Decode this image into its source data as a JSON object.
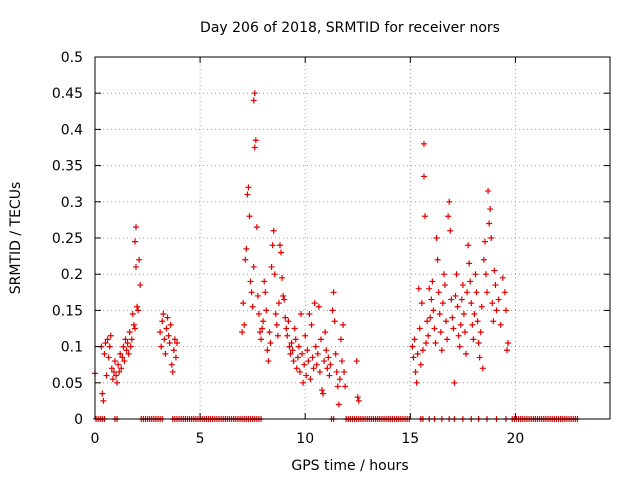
{
  "chart_data": {
    "type": "scatter",
    "title": "Day 206 of 2018, SRMTID for receiver nors",
    "xlabel": "GPS time / hours",
    "ylabel": "SRMTID / TECUs",
    "xlim": [
      0,
      24.5
    ],
    "ylim": [
      0,
      0.5
    ],
    "x_ticks": [
      0,
      5,
      10,
      15,
      20
    ],
    "y_ticks": [
      0,
      0.05,
      0.1,
      0.15,
      0.2,
      0.25,
      0.3,
      0.35,
      0.4,
      0.45,
      0.5
    ],
    "x_tick_labels": [
      "0",
      "5",
      "10",
      "15",
      "20"
    ],
    "y_tick_labels": [
      "0",
      "0.05",
      "0.1",
      "0.15",
      "0.2",
      "0.25",
      "0.3",
      "0.35",
      "0.4",
      "0.45",
      "0.5"
    ],
    "grid": true,
    "marker": "+",
    "marker_color": "#e00000",
    "series": [
      {
        "name": "SRMTID",
        "points": [
          [
            0.0,
            0.063
          ],
          [
            0.3,
            0.1
          ],
          [
            0.35,
            0.035
          ],
          [
            0.4,
            0.025
          ],
          [
            0.45,
            0.09
          ],
          [
            0.5,
            0.105
          ],
          [
            0.55,
            0.06
          ],
          [
            0.6,
            0.11
          ],
          [
            0.65,
            0.085
          ],
          [
            0.7,
            0.1
          ],
          [
            0.75,
            0.115
          ],
          [
            0.8,
            0.07
          ],
          [
            0.85,
            0.055
          ],
          [
            0.9,
            0.065
          ],
          [
            0.95,
            0.08
          ],
          [
            1.0,
            0.06
          ],
          [
            1.05,
            0.05
          ],
          [
            1.1,
            0.075
          ],
          [
            1.15,
            0.065
          ],
          [
            1.2,
            0.09
          ],
          [
            1.25,
            0.07
          ],
          [
            1.3,
            0.085
          ],
          [
            1.35,
            0.1
          ],
          [
            1.4,
            0.08
          ],
          [
            1.45,
            0.11
          ],
          [
            1.5,
            0.095
          ],
          [
            1.55,
            0.105
          ],
          [
            1.6,
            0.09
          ],
          [
            1.65,
            0.12
          ],
          [
            1.7,
            0.1
          ],
          [
            1.75,
            0.11
          ],
          [
            1.8,
            0.145
          ],
          [
            1.85,
            0.13
          ],
          [
            1.9,
            0.125
          ],
          [
            1.95,
            0.21
          ],
          [
            1.9,
            0.245
          ],
          [
            1.95,
            0.265
          ],
          [
            2.0,
            0.155
          ],
          [
            2.05,
            0.15
          ],
          [
            2.1,
            0.22
          ],
          [
            2.15,
            0.185
          ],
          [
            3.1,
            0.12
          ],
          [
            3.15,
            0.1
          ],
          [
            3.2,
            0.135
          ],
          [
            3.25,
            0.145
          ],
          [
            3.3,
            0.11
          ],
          [
            3.35,
            0.09
          ],
          [
            3.4,
            0.125
          ],
          [
            3.45,
            0.14
          ],
          [
            3.5,
            0.115
          ],
          [
            3.55,
            0.105
          ],
          [
            3.6,
            0.13
          ],
          [
            3.65,
            0.075
          ],
          [
            3.7,
            0.065
          ],
          [
            3.75,
            0.095
          ],
          [
            3.8,
            0.11
          ],
          [
            3.85,
            0.085
          ],
          [
            3.9,
            0.105
          ],
          [
            7.0,
            0.12
          ],
          [
            7.05,
            0.16
          ],
          [
            7.1,
            0.13
          ],
          [
            7.15,
            0.22
          ],
          [
            7.2,
            0.235
          ],
          [
            7.25,
            0.31
          ],
          [
            7.3,
            0.32
          ],
          [
            7.35,
            0.28
          ],
          [
            7.4,
            0.19
          ],
          [
            7.45,
            0.175
          ],
          [
            7.5,
            0.155
          ],
          [
            7.55,
            0.21
          ],
          [
            7.6,
            0.375
          ],
          [
            7.65,
            0.385
          ],
          [
            7.55,
            0.44
          ],
          [
            7.6,
            0.45
          ],
          [
            7.7,
            0.265
          ],
          [
            7.75,
            0.17
          ],
          [
            7.8,
            0.145
          ],
          [
            7.85,
            0.12
          ],
          [
            7.9,
            0.11
          ],
          [
            7.95,
            0.125
          ],
          [
            8.0,
            0.135
          ],
          [
            8.05,
            0.19
          ],
          [
            8.1,
            0.175
          ],
          [
            8.15,
            0.15
          ],
          [
            8.2,
            0.095
          ],
          [
            8.25,
            0.08
          ],
          [
            8.3,
            0.12
          ],
          [
            8.35,
            0.105
          ],
          [
            8.4,
            0.21
          ],
          [
            8.45,
            0.24
          ],
          [
            8.5,
            0.26
          ],
          [
            8.55,
            0.2
          ],
          [
            8.6,
            0.145
          ],
          [
            8.65,
            0.13
          ],
          [
            8.7,
            0.115
          ],
          [
            8.75,
            0.16
          ],
          [
            8.8,
            0.24
          ],
          [
            8.85,
            0.23
          ],
          [
            8.9,
            0.195
          ],
          [
            8.95,
            0.17
          ],
          [
            9.0,
            0.165
          ],
          [
            9.05,
            0.14
          ],
          [
            9.1,
            0.125
          ],
          [
            9.15,
            0.115
          ],
          [
            9.2,
            0.135
          ],
          [
            9.25,
            0.1
          ],
          [
            9.3,
            0.09
          ],
          [
            9.35,
            0.105
          ],
          [
            9.4,
            0.095
          ],
          [
            9.45,
            0.08
          ],
          [
            9.5,
            0.125
          ],
          [
            9.55,
            0.11
          ],
          [
            9.6,
            0.07
          ],
          [
            9.65,
            0.085
          ],
          [
            9.7,
            0.1
          ],
          [
            9.75,
            0.065
          ],
          [
            9.8,
            0.145
          ],
          [
            9.85,
            0.09
          ],
          [
            9.9,
            0.05
          ],
          [
            9.95,
            0.075
          ],
          [
            10.0,
            0.115
          ],
          [
            10.05,
            0.06
          ],
          [
            10.1,
            0.095
          ],
          [
            10.15,
            0.08
          ],
          [
            10.2,
            0.145
          ],
          [
            10.25,
            0.055
          ],
          [
            10.3,
            0.13
          ],
          [
            10.35,
            0.085
          ],
          [
            10.4,
            0.07
          ],
          [
            10.45,
            0.16
          ],
          [
            10.5,
            0.1
          ],
          [
            10.55,
            0.075
          ],
          [
            10.6,
            0.09
          ],
          [
            10.65,
            0.155
          ],
          [
            10.7,
            0.065
          ],
          [
            10.75,
            0.11
          ],
          [
            10.8,
            0.04
          ],
          [
            10.85,
            0.035
          ],
          [
            10.9,
            0.08
          ],
          [
            10.95,
            0.12
          ],
          [
            11.0,
            0.095
          ],
          [
            11.05,
            0.07
          ],
          [
            11.1,
            0.085
          ],
          [
            11.15,
            0.06
          ],
          [
            11.2,
            0.075
          ],
          [
            11.3,
            0.15
          ],
          [
            11.35,
            0.175
          ],
          [
            11.4,
            0.135
          ],
          [
            11.45,
            0.09
          ],
          [
            11.5,
            0.065
          ],
          [
            11.55,
            0.045
          ],
          [
            11.6,
            0.02
          ],
          [
            11.65,
            0.055
          ],
          [
            11.7,
            0.11
          ],
          [
            11.75,
            0.08
          ],
          [
            11.8,
            0.13
          ],
          [
            11.85,
            0.065
          ],
          [
            11.9,
            0.045
          ],
          [
            12.45,
            0.08
          ],
          [
            12.5,
            0.03
          ],
          [
            12.55,
            0.025
          ],
          [
            15.1,
            0.1
          ],
          [
            15.15,
            0.085
          ],
          [
            15.2,
            0.11
          ],
          [
            15.25,
            0.065
          ],
          [
            15.3,
            0.05
          ],
          [
            15.35,
            0.09
          ],
          [
            15.4,
            0.18
          ],
          [
            15.45,
            0.125
          ],
          [
            15.5,
            0.075
          ],
          [
            15.55,
            0.16
          ],
          [
            15.6,
            0.095
          ],
          [
            15.65,
            0.38
          ],
          [
            15.65,
            0.335
          ],
          [
            15.7,
            0.28
          ],
          [
            15.75,
            0.105
          ],
          [
            15.8,
            0.135
          ],
          [
            15.85,
            0.115
          ],
          [
            15.9,
            0.18
          ],
          [
            15.95,
            0.14
          ],
          [
            16.0,
            0.165
          ],
          [
            16.05,
            0.19
          ],
          [
            16.1,
            0.15
          ],
          [
            16.15,
            0.125
          ],
          [
            16.2,
            0.105
          ],
          [
            16.25,
            0.25
          ],
          [
            16.3,
            0.22
          ],
          [
            16.35,
            0.175
          ],
          [
            16.4,
            0.145
          ],
          [
            16.45,
            0.12
          ],
          [
            16.5,
            0.095
          ],
          [
            16.55,
            0.16
          ],
          [
            16.6,
            0.2
          ],
          [
            16.65,
            0.185
          ],
          [
            16.7,
            0.135
          ],
          [
            16.75,
            0.11
          ],
          [
            16.8,
            0.28
          ],
          [
            16.85,
            0.3
          ],
          [
            16.9,
            0.26
          ],
          [
            16.95,
            0.165
          ],
          [
            17.0,
            0.14
          ],
          [
            17.05,
            0.125
          ],
          [
            17.1,
            0.05
          ],
          [
            17.15,
            0.17
          ],
          [
            17.2,
            0.2
          ],
          [
            17.25,
            0.155
          ],
          [
            17.3,
            0.115
          ],
          [
            17.35,
            0.1
          ],
          [
            17.4,
            0.13
          ],
          [
            17.45,
            0.165
          ],
          [
            17.5,
            0.185
          ],
          [
            17.55,
            0.145
          ],
          [
            17.6,
            0.12
          ],
          [
            17.65,
            0.09
          ],
          [
            17.7,
            0.175
          ],
          [
            17.75,
            0.24
          ],
          [
            17.8,
            0.215
          ],
          [
            17.85,
            0.19
          ],
          [
            17.9,
            0.16
          ],
          [
            17.95,
            0.13
          ],
          [
            18.0,
            0.11
          ],
          [
            18.05,
            0.145
          ],
          [
            18.1,
            0.2
          ],
          [
            18.15,
            0.175
          ],
          [
            18.2,
            0.135
          ],
          [
            18.25,
            0.105
          ],
          [
            18.3,
            0.085
          ],
          [
            18.35,
            0.12
          ],
          [
            18.4,
            0.155
          ],
          [
            18.45,
            0.07
          ],
          [
            18.5,
            0.22
          ],
          [
            18.55,
            0.245
          ],
          [
            18.6,
            0.2
          ],
          [
            18.65,
            0.175
          ],
          [
            18.7,
            0.315
          ],
          [
            18.75,
            0.27
          ],
          [
            18.8,
            0.29
          ],
          [
            18.85,
            0.25
          ],
          [
            18.9,
            0.16
          ],
          [
            18.95,
            0.135
          ],
          [
            19.0,
            0.205
          ],
          [
            19.05,
            0.185
          ],
          [
            19.1,
            0.15
          ],
          [
            19.2,
            0.165
          ],
          [
            19.3,
            0.13
          ],
          [
            19.4,
            0.195
          ],
          [
            19.5,
            0.175
          ],
          [
            19.55,
            0.15
          ],
          [
            19.6,
            0.095
          ],
          [
            19.65,
            0.105
          ]
        ],
        "zero_bands": [
          [
            0.05,
            0.45
          ],
          [
            0.95,
            1.05
          ],
          [
            2.2,
            3.2
          ],
          [
            3.7,
            7.5
          ],
          [
            7.6,
            7.95
          ],
          [
            11.25,
            11.35
          ],
          [
            11.95,
            15.0
          ],
          [
            15.5,
            15.65
          ],
          [
            15.9,
            15.95
          ],
          [
            16.15,
            16.2
          ],
          [
            16.5,
            16.55
          ],
          [
            16.85,
            16.9
          ],
          [
            17.1,
            17.15
          ],
          [
            17.5,
            17.55
          ],
          [
            17.9,
            17.95
          ],
          [
            18.25,
            18.3
          ],
          [
            18.65,
            18.7
          ],
          [
            19.1,
            19.15
          ],
          [
            19.55,
            19.6
          ],
          [
            19.85,
            22.95
          ]
        ]
      }
    ]
  }
}
